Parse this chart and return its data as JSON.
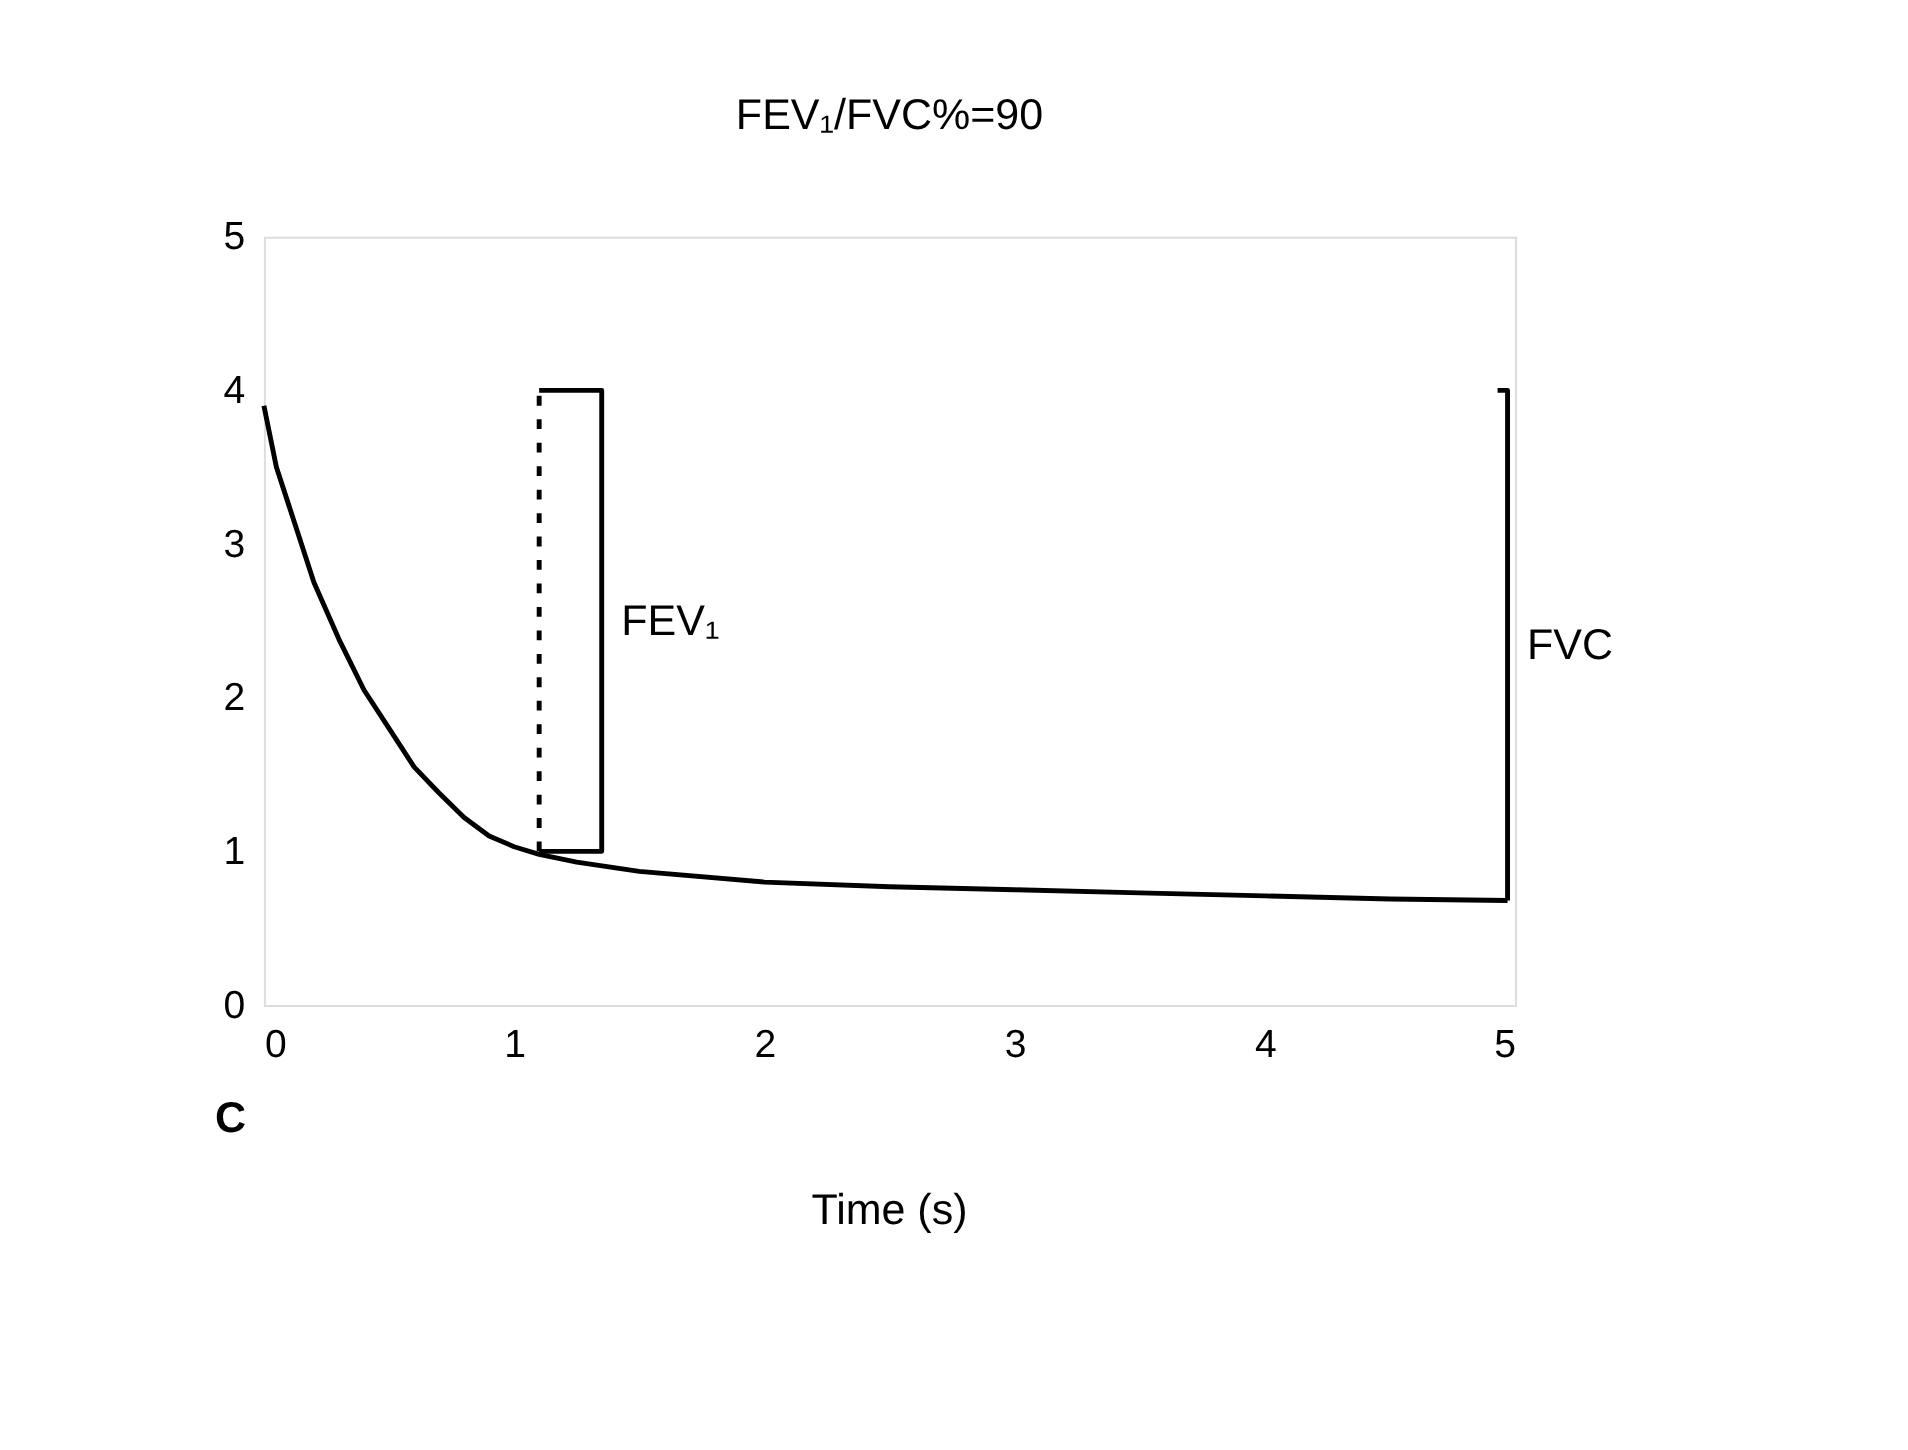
{
  "chart_data": {
    "type": "line",
    "title": "FEV₁/FVC%=90",
    "xlabel": "Time (s)",
    "xlim": [
      0,
      5
    ],
    "xticks": [
      0,
      1,
      2,
      3,
      4,
      5
    ],
    "ylim": [
      0,
      5
    ],
    "yticks": [
      0,
      1,
      2,
      3,
      4,
      5
    ],
    "grid": false,
    "marker": "none",
    "series": [
      {
        "color": "#000000",
        "line_style": "solid",
        "x": [
          0,
          0.05,
          0.1,
          0.15,
          0.2,
          0.3,
          0.4,
          0.5,
          0.6,
          0.7,
          0.8,
          0.9,
          1.0,
          1.1,
          1.25,
          1.5,
          2,
          2.5,
          3,
          3.5,
          4,
          4.5,
          4.97
        ],
        "values": [
          3.9,
          3.5,
          3.25,
          3.0,
          2.75,
          2.38,
          2.05,
          1.8,
          1.55,
          1.38,
          1.22,
          1.1,
          1.03,
          0.98,
          0.93,
          0.87,
          0.8,
          0.77,
          0.75,
          0.73,
          0.71,
          0.69,
          0.68
        ]
      },
      {
        "color": "#000000",
        "line_style": "dashed",
        "x": [
          1.1,
          1.1
        ],
        "values": [
          1,
          4
        ]
      },
      {
        "color": "#000000",
        "line_style": "solid",
        "x": [
          1.1,
          1.35,
          1.35,
          1.1
        ],
        "values": [
          4,
          4,
          1,
          1
        ]
      },
      {
        "color": "#000000",
        "line_style": "solid",
        "x": [
          4.93,
          4.97,
          4.97
        ],
        "values": [
          4,
          4,
          0.68
        ]
      }
    ],
    "annotations": [
      "FEV₁",
      "FVC",
      "C"
    ]
  }
}
